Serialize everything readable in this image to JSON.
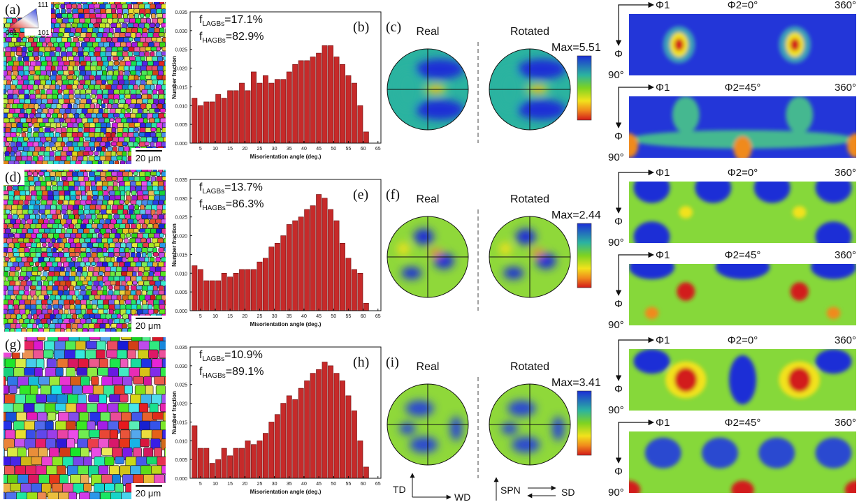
{
  "chart_data": [
    {
      "type": "histogram",
      "panel_label": "(b)",
      "xlabel": "Misorientation angle (deg.)",
      "ylabel": "Number fraction",
      "annotations": [
        {
          "f": "f",
          "sub": "LAGBs",
          "value": "=17.1%"
        },
        {
          "f": "f",
          "sub": "HAGBs",
          "value": "=82.9%"
        }
      ],
      "color": "#c62a2a",
      "bins": [
        2,
        4,
        6,
        8,
        10,
        12,
        14,
        16,
        18,
        20,
        22,
        24,
        26,
        28,
        30,
        32,
        34,
        36,
        38,
        40,
        42,
        44,
        46,
        48,
        50,
        52,
        54,
        56,
        58,
        60,
        62
      ],
      "values": [
        0.012,
        0.01,
        0.011,
        0.011,
        0.013,
        0.012,
        0.014,
        0.014,
        0.016,
        0.014,
        0.019,
        0.016,
        0.018,
        0.016,
        0.017,
        0.017,
        0.019,
        0.021,
        0.022,
        0.022,
        0.023,
        0.024,
        0.026,
        0.026,
        0.023,
        0.021,
        0.018,
        0.016,
        0.01,
        0.003
      ],
      "xlim": [
        1.5,
        66
      ],
      "xticks": [
        5,
        10,
        15,
        20,
        25,
        30,
        35,
        40,
        45,
        50,
        55,
        60,
        65
      ],
      "ylim": [
        0,
        0.035
      ],
      "yticks": [
        {
          "value": 0,
          "label": "0.000"
        },
        {
          "value": 0.005,
          "label": "0.005"
        },
        {
          "value": 0.01,
          "label": "0.010"
        },
        {
          "value": 0.015,
          "label": "0.015"
        },
        {
          "value": 0.02,
          "label": "0.020"
        },
        {
          "value": 0.025,
          "label": "0.025"
        },
        {
          "value": 0.03,
          "label": "0.030"
        },
        {
          "value": 0.035,
          "label": "0.035"
        }
      ]
    },
    {
      "type": "histogram",
      "panel_label": "(e)",
      "xlabel": "Misorientation angle (deg.)",
      "ylabel": "Number fraction",
      "annotations": [
        {
          "f": "f",
          "sub": "LAGBs",
          "value": "=13.7%"
        },
        {
          "f": "f",
          "sub": "HAGBs",
          "value": "=86.3%"
        }
      ],
      "color": "#c62a2a",
      "bins": [
        2,
        4,
        6,
        8,
        10,
        12,
        14,
        16,
        18,
        20,
        22,
        24,
        26,
        28,
        30,
        32,
        34,
        36,
        38,
        40,
        42,
        44,
        46,
        48,
        50,
        52,
        54,
        56,
        58,
        60,
        62
      ],
      "values": [
        0.012,
        0.011,
        0.008,
        0.008,
        0.008,
        0.01,
        0.009,
        0.01,
        0.011,
        0.011,
        0.011,
        0.013,
        0.014,
        0.017,
        0.018,
        0.02,
        0.023,
        0.024,
        0.025,
        0.027,
        0.028,
        0.031,
        0.03,
        0.027,
        0.024,
        0.018,
        0.014,
        0.011,
        0.01,
        0.002
      ],
      "xlim": [
        1.5,
        66
      ],
      "xticks": [
        5,
        10,
        15,
        20,
        25,
        30,
        35,
        40,
        45,
        50,
        55,
        60,
        65
      ],
      "ylim": [
        0,
        0.035
      ],
      "yticks": [
        {
          "value": 0,
          "label": "0.000"
        },
        {
          "value": 0.005,
          "label": "0.005"
        },
        {
          "value": 0.01,
          "label": "0.010"
        },
        {
          "value": 0.015,
          "label": "0.015"
        },
        {
          "value": 0.02,
          "label": "0.020"
        },
        {
          "value": 0.025,
          "label": "0.025"
        },
        {
          "value": 0.03,
          "label": "0.030"
        },
        {
          "value": 0.035,
          "label": "0.035"
        }
      ]
    },
    {
      "type": "histogram",
      "panel_label": "(h)",
      "xlabel": "Misorientation angle (deg.)",
      "ylabel": "Number fraction",
      "annotations": [
        {
          "f": "f",
          "sub": "LAGBs",
          "value": "=10.9%"
        },
        {
          "f": "f",
          "sub": "HAGBs",
          "value": "=89.1%"
        }
      ],
      "color": "#c62a2a",
      "bins": [
        2,
        4,
        6,
        8,
        10,
        12,
        14,
        16,
        18,
        20,
        22,
        24,
        26,
        28,
        30,
        32,
        34,
        36,
        38,
        40,
        42,
        44,
        46,
        48,
        50,
        52,
        54,
        56,
        58,
        60,
        62
      ],
      "values": [
        0.014,
        0.008,
        0.008,
        0.004,
        0.005,
        0.008,
        0.006,
        0.008,
        0.008,
        0.01,
        0.009,
        0.01,
        0.012,
        0.015,
        0.017,
        0.02,
        0.022,
        0.021,
        0.024,
        0.026,
        0.028,
        0.029,
        0.031,
        0.03,
        0.028,
        0.026,
        0.022,
        0.018,
        0.01,
        0.003
      ],
      "xlim": [
        1.5,
        66
      ],
      "xticks": [
        5,
        10,
        15,
        20,
        25,
        30,
        35,
        40,
        45,
        50,
        55,
        60,
        65
      ],
      "ylim": [
        0,
        0.035
      ],
      "yticks": [
        {
          "value": 0,
          "label": "0.000"
        },
        {
          "value": 0.005,
          "label": "0.005"
        },
        {
          "value": 0.01,
          "label": "0.010"
        },
        {
          "value": 0.015,
          "label": "0.015"
        },
        {
          "value": 0.02,
          "label": "0.020"
        },
        {
          "value": 0.025,
          "label": "0.025"
        },
        {
          "value": 0.03,
          "label": "0.030"
        },
        {
          "value": 0.035,
          "label": "0.035"
        }
      ]
    }
  ],
  "maps": [
    {
      "label": "(a)",
      "scale": "20 μm"
    },
    {
      "label": "(d)",
      "scale": "20 μm"
    },
    {
      "label": "(g)",
      "scale": "20 μm"
    }
  ],
  "ipf_key": {
    "top": "111",
    "left": "001",
    "right": "101"
  },
  "pole_figures": [
    {
      "label": "(c)",
      "real": "Real",
      "rotated": "Rotated",
      "max": "Max=5.51"
    },
    {
      "label": "(f)",
      "real": "Real",
      "rotated": "Rotated",
      "max": "Max=2.44"
    },
    {
      "label": "(i)",
      "real": "Real",
      "rotated": "Rotated",
      "max": "Max=3.41"
    }
  ],
  "odfs": [
    [
      {
        "phi1": "Φ1",
        "phi2": "Φ2=0°",
        "end": "360°",
        "phi": "Φ",
        "bottom": "90°"
      },
      {
        "phi1": "Φ1",
        "phi2": "Φ2=45°",
        "end": "360°",
        "phi": "Φ",
        "bottom": "90°"
      }
    ],
    [
      {
        "phi1": "Φ1",
        "phi2": "Φ2=0°",
        "end": "360°",
        "phi": "Φ",
        "bottom": "90°"
      },
      {
        "phi1": "Φ1",
        "phi2": "Φ2=45°",
        "end": "360°",
        "phi": "Φ",
        "bottom": "90°"
      }
    ],
    [
      {
        "phi1": "Φ1",
        "phi2": "Φ2=0°",
        "end": "360°",
        "phi": "Φ",
        "bottom": "90°"
      },
      {
        "phi1": "Φ1",
        "phi2": "Φ2=45°",
        "end": "360°",
        "phi": "Φ",
        "bottom": "90°"
      }
    ]
  ],
  "axes_key": {
    "td": "TD",
    "wd": "WD",
    "spn": "SPN",
    "sd": "SD"
  }
}
